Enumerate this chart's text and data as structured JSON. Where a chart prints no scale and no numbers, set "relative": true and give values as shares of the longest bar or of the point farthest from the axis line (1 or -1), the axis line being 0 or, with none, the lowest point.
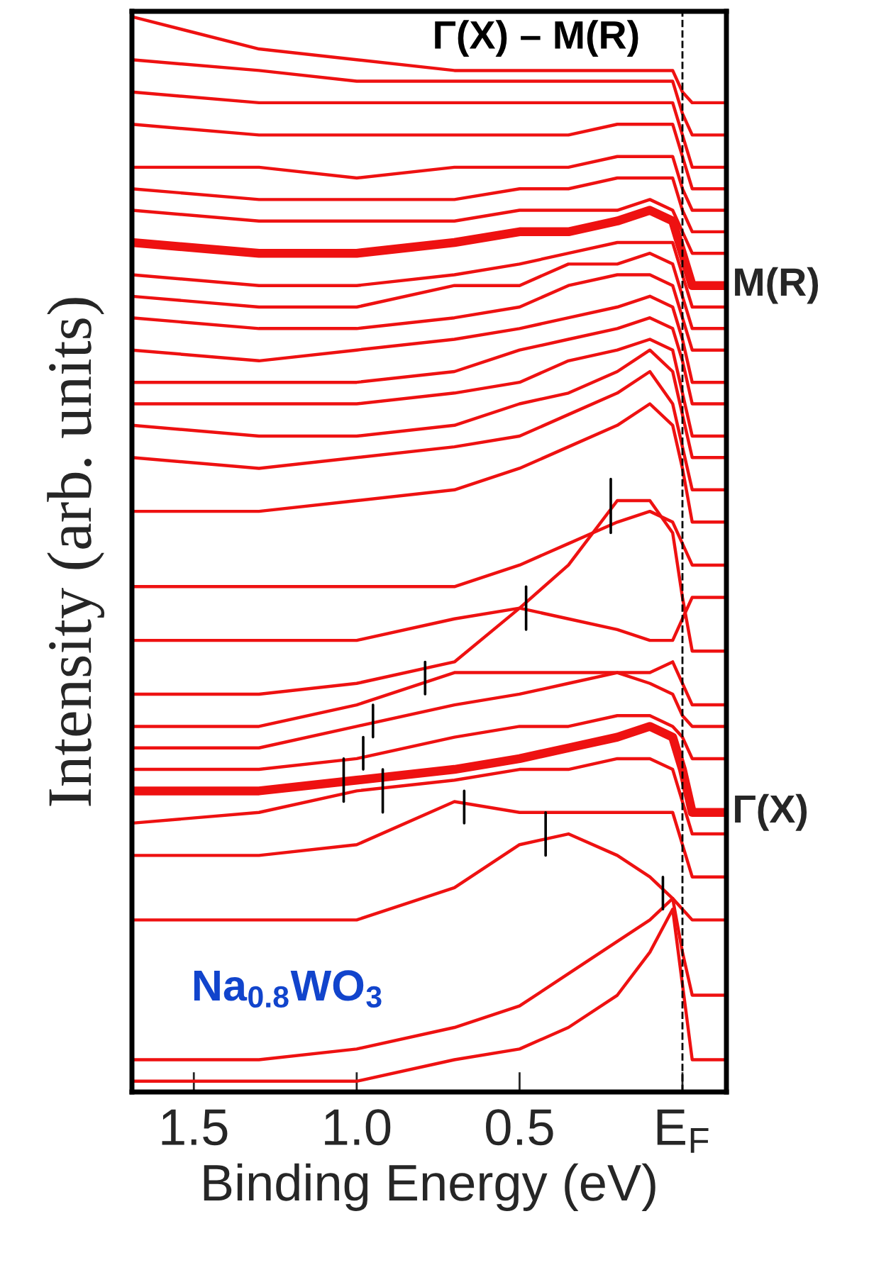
{
  "chart_data": {
    "type": "line",
    "relative": true,
    "xlabel": "Binding Energy (eV)",
    "ylabel": "Intensity (arb. units)",
    "x": [
      1.69,
      1.3,
      1.0,
      0.7,
      0.5,
      0.35,
      0.2,
      0.1,
      0.03,
      0.0,
      -0.03,
      -0.135
    ],
    "xlim": [
      1.69,
      -0.135
    ],
    "xticks": [
      {
        "value": 1.5,
        "label": "1.5"
      },
      {
        "value": 1.0,
        "label": "1.0"
      },
      {
        "value": 0.5,
        "label": "0.5"
      },
      {
        "value": 0,
        "label": "E$_{F}$"
      }
    ],
    "tick_labels": "x",
    "grid": false,
    "legend": false,
    "marker": "none",
    "line_style": "solid",
    "annotations": [
      "Γ(X) – M(R)",
      "Na$_{0.8}$WO$_{3}$"
    ],
    "ref_lines": [
      {
        "axis": "x",
        "value": 0,
        "color": "#000000",
        "line_style": "dashed"
      }
    ],
    "series": [
      {
        "color": "#ee1111",
        "values": [
          1.0,
          0.97,
          0.96,
          0.95,
          0.95,
          0.95,
          0.95,
          0.95,
          0.95,
          0.93,
          0.92,
          0.92
        ]
      },
      {
        "color": "#ee1111",
        "values": [
          0.96,
          0.95,
          0.94,
          0.94,
          0.94,
          0.94,
          0.94,
          0.94,
          0.94,
          0.91,
          0.89,
          0.89
        ]
      },
      {
        "color": "#ee1111",
        "values": [
          0.93,
          0.92,
          0.92,
          0.92,
          0.92,
          0.92,
          0.92,
          0.92,
          0.92,
          0.89,
          0.86,
          0.86
        ]
      },
      {
        "color": "#ee1111",
        "values": [
          0.9,
          0.89,
          0.89,
          0.89,
          0.89,
          0.89,
          0.9,
          0.9,
          0.9,
          0.87,
          0.84,
          0.84
        ]
      },
      {
        "color": "#ee1111",
        "values": [
          0.86,
          0.86,
          0.85,
          0.86,
          0.86,
          0.86,
          0.87,
          0.87,
          0.87,
          0.84,
          0.82,
          0.82
        ]
      },
      {
        "color": "#ee1111",
        "values": [
          0.84,
          0.83,
          0.83,
          0.83,
          0.84,
          0.84,
          0.85,
          0.85,
          0.85,
          0.82,
          0.8,
          0.8
        ]
      },
      {
        "color": "#ee1111",
        "values": [
          0.82,
          0.81,
          0.81,
          0.81,
          0.82,
          0.82,
          0.82,
          0.83,
          0.82,
          0.8,
          0.78,
          0.78
        ]
      },
      {
        "name": "M(R)",
        "color": "#ee1111",
        "values": [
          0.79,
          0.78,
          0.78,
          0.79,
          0.8,
          0.8,
          0.81,
          0.82,
          0.81,
          0.78,
          0.75,
          0.75
        ]
      },
      {
        "color": "#ee1111",
        "values": [
          0.76,
          0.75,
          0.75,
          0.76,
          0.77,
          0.78,
          0.79,
          0.79,
          0.79,
          0.76,
          0.73,
          0.73
        ]
      },
      {
        "color": "#ee1111",
        "values": [
          0.74,
          0.73,
          0.73,
          0.75,
          0.75,
          0.77,
          0.77,
          0.78,
          0.77,
          0.74,
          0.71,
          0.71
        ]
      },
      {
        "color": "#ee1111",
        "values": [
          0.72,
          0.71,
          0.71,
          0.72,
          0.73,
          0.75,
          0.76,
          0.76,
          0.75,
          0.72,
          0.69,
          0.69
        ]
      },
      {
        "color": "#ee1111",
        "values": [
          0.69,
          0.68,
          0.69,
          0.7,
          0.71,
          0.72,
          0.73,
          0.74,
          0.73,
          0.7,
          0.66,
          0.66
        ]
      },
      {
        "color": "#ee1111",
        "values": [
          0.66,
          0.66,
          0.66,
          0.67,
          0.69,
          0.7,
          0.71,
          0.72,
          0.71,
          0.68,
          0.64,
          0.64
        ]
      },
      {
        "color": "#ee1111",
        "values": [
          0.64,
          0.64,
          0.64,
          0.65,
          0.66,
          0.68,
          0.69,
          0.7,
          0.69,
          0.65,
          0.61,
          0.61
        ]
      },
      {
        "color": "#ee1111",
        "values": [
          0.62,
          0.61,
          0.61,
          0.62,
          0.64,
          0.65,
          0.67,
          0.69,
          0.67,
          0.63,
          0.59,
          0.59
        ]
      },
      {
        "color": "#ee1111",
        "values": [
          0.59,
          0.58,
          0.59,
          0.6,
          0.61,
          0.63,
          0.65,
          0.67,
          0.64,
          0.6,
          0.56,
          0.56
        ]
      },
      {
        "color": "#ee1111",
        "values": [
          0.54,
          0.54,
          0.55,
          0.56,
          0.58,
          0.6,
          0.62,
          0.64,
          0.62,
          0.58,
          0.53,
          0.53
        ]
      },
      {
        "color": "#ee1111",
        "values": [
          0.47,
          0.47,
          0.47,
          0.47,
          0.49,
          0.51,
          0.53,
          0.54,
          0.53,
          0.51,
          0.49,
          0.49
        ]
      },
      {
        "color": "#ee1111",
        "values": [
          0.42,
          0.42,
          0.42,
          0.44,
          0.45,
          0.44,
          0.43,
          0.42,
          0.42,
          0.44,
          0.46,
          0.46
        ]
      },
      {
        "color": "#ee1111",
        "values": [
          0.37,
          0.37,
          0.38,
          0.4,
          0.45,
          0.49,
          0.55,
          0.55,
          0.52,
          0.46,
          0.41,
          0.41
        ]
      },
      {
        "color": "#ee1111",
        "values": [
          0.34,
          0.34,
          0.36,
          0.39,
          0.39,
          0.39,
          0.39,
          0.39,
          0.4,
          0.38,
          0.36,
          0.36
        ]
      },
      {
        "color": "#ee1111",
        "values": [
          0.32,
          0.32,
          0.34,
          0.36,
          0.37,
          0.38,
          0.39,
          0.38,
          0.37,
          0.35,
          0.34,
          0.34
        ]
      },
      {
        "color": "#ee1111",
        "values": [
          0.3,
          0.3,
          0.31,
          0.33,
          0.34,
          0.34,
          0.35,
          0.35,
          0.34,
          0.33,
          0.31,
          0.31
        ]
      },
      {
        "name": "Γ(X)",
        "color": "#ee1111",
        "values": [
          0.28,
          0.28,
          0.29,
          0.3,
          0.31,
          0.32,
          0.33,
          0.34,
          0.33,
          0.3,
          0.26,
          0.26
        ]
      },
      {
        "color": "#ee1111",
        "values": [
          0.25,
          0.26,
          0.28,
          0.29,
          0.3,
          0.3,
          0.31,
          0.31,
          0.3,
          0.27,
          0.24,
          0.24
        ]
      },
      {
        "color": "#ee1111",
        "values": [
          0.22,
          0.22,
          0.23,
          0.27,
          0.26,
          0.26,
          0.26,
          0.26,
          0.26,
          0.23,
          0.2,
          0.2
        ]
      },
      {
        "color": "#ee1111",
        "values": [
          0.16,
          0.16,
          0.16,
          0.19,
          0.23,
          0.24,
          0.22,
          0.2,
          0.18,
          0.17,
          0.16,
          0.16
        ]
      },
      {
        "color": "#ee1111",
        "values": [
          0.03,
          0.03,
          0.04,
          0.06,
          0.08,
          0.11,
          0.14,
          0.16,
          0.18,
          0.13,
          0.09,
          0.09
        ]
      },
      {
        "color": "#ee1111",
        "values": [
          0.01,
          0.01,
          0.01,
          0.03,
          0.04,
          0.06,
          0.09,
          0.13,
          0.17,
          0.1,
          0.03,
          0.03
        ]
      },
      {
        "color": "#000000",
        "x": [
          0.22,
          0.22
        ],
        "values": [
          0.52,
          0.57
        ]
      },
      {
        "color": "#000000",
        "x": [
          0.48,
          0.48
        ],
        "values": [
          0.43,
          0.47
        ]
      },
      {
        "color": "#000000",
        "x": [
          0.79,
          0.79
        ],
        "values": [
          0.37,
          0.4
        ]
      },
      {
        "color": "#000000",
        "x": [
          0.95,
          0.95
        ],
        "values": [
          0.33,
          0.36
        ]
      },
      {
        "color": "#000000",
        "x": [
          0.98,
          0.98
        ],
        "values": [
          0.3,
          0.33
        ]
      },
      {
        "color": "#000000",
        "x": [
          1.04,
          1.04
        ],
        "values": [
          0.27,
          0.31
        ]
      },
      {
        "color": "#000000",
        "x": [
          0.92,
          0.92
        ],
        "values": [
          0.26,
          0.3
        ]
      },
      {
        "color": "#000000",
        "x": [
          0.67,
          0.67
        ],
        "values": [
          0.25,
          0.28
        ]
      },
      {
        "color": "#000000",
        "x": [
          0.42,
          0.42
        ],
        "values": [
          0.22,
          0.26
        ]
      },
      {
        "color": "#000000",
        "x": [
          0.06,
          0.06
        ],
        "values": [
          0.17,
          0.2
        ]
      }
    ]
  }
}
